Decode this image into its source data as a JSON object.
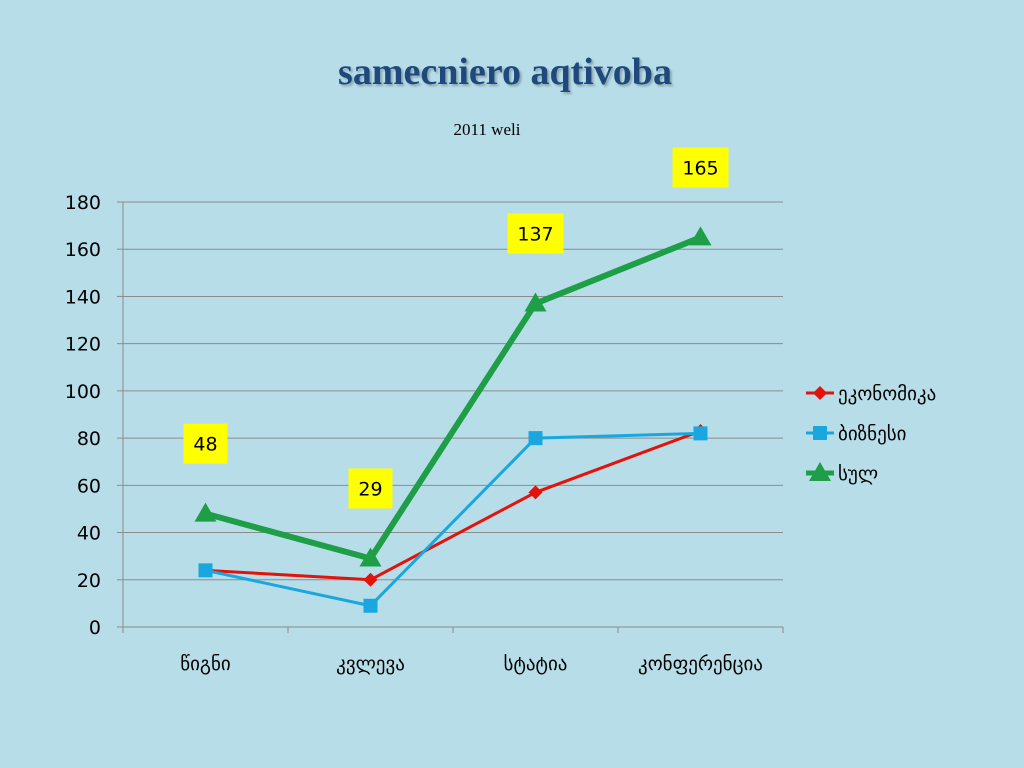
{
  "slide": {
    "title": "samecniero aqtivoba",
    "subtitle": "2011 weli"
  },
  "chart_data": {
    "type": "line",
    "categories": [
      "წიგნი",
      "კვლევა",
      "სტატია",
      "კონფერენცია"
    ],
    "ylim": [
      0,
      180
    ],
    "yticks": [
      0,
      20,
      40,
      60,
      80,
      100,
      120,
      140,
      160,
      180
    ],
    "grid": true,
    "legend": "right",
    "series": [
      {
        "name": "ეკონომიკა",
        "values": [
          24,
          20,
          57,
          83
        ],
        "color": "#e3120b",
        "marker": "diamond"
      },
      {
        "name": "ბიზნესი",
        "values": [
          24,
          9,
          80,
          82
        ],
        "color": "#1aa7e0",
        "marker": "square"
      },
      {
        "name": "სულ",
        "values": [
          48,
          29,
          137,
          165
        ],
        "color": "#1e9e47",
        "marker": "triangle",
        "data_labels": [
          "48",
          "29",
          "137",
          "165"
        ]
      }
    ],
    "data_label_style": {
      "background": "#ffff00"
    }
  }
}
